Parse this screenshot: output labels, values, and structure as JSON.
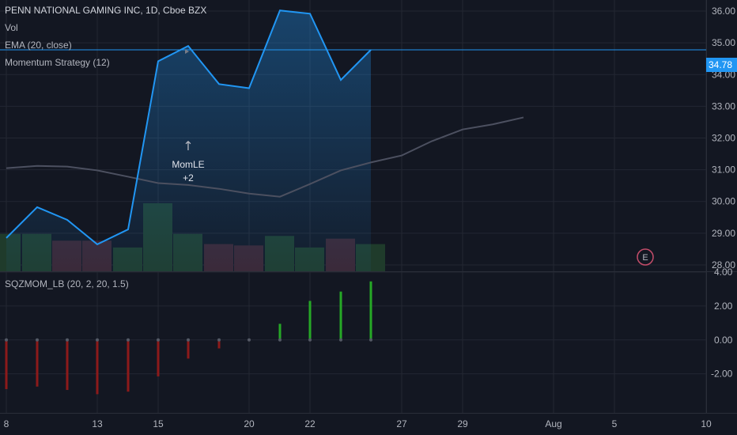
{
  "header": {
    "symbol_title": "PENN NATIONAL GAMING INC, 1D, Cboe BZX",
    "vol_label": "Vol",
    "ema_label": "EMA (20, close)",
    "strategy_label": "Momentum Strategy (12)",
    "indicator_label": "SQZMOM_LB (20, 2, 20, 1.5)"
  },
  "price_badge": "34.78",
  "signal": {
    "name": "MomLE",
    "qty": "+2",
    "arrow": "↑"
  },
  "earnings_marker": "E",
  "colors": {
    "background": "#131722",
    "price_line": "#2196f3",
    "ema_line": "#4c5060",
    "grid": "#232732",
    "pos_momentum": "#26a826",
    "neg_momentum": "#8c1a1a",
    "vol_up": "#1f3b2b",
    "vol_down": "#3b2430",
    "earnings": "#c44d6a"
  },
  "chart_data": [
    {
      "type": "area",
      "name": "price",
      "x": [
        "Jul 8",
        "Jul 9",
        "Jul 10",
        "Jul 11",
        "Jul 12",
        "Jul 15",
        "Jul 16",
        "Jul 17",
        "Jul 18",
        "Jul 19",
        "Jul 22",
        "Jul 23",
        "Jul 24"
      ],
      "close": [
        28.85,
        29.82,
        29.42,
        28.65,
        29.12,
        34.42,
        34.9,
        33.7,
        33.57,
        36.02,
        35.92,
        33.83,
        34.78
      ],
      "ema_x": [
        "Jul 8",
        "Jul 9",
        "Jul 10",
        "Jul 11",
        "Jul 12",
        "Jul 15",
        "Jul 16",
        "Jul 17",
        "Jul 18",
        "Jul 19",
        "Jul 22",
        "Jul 23",
        "Jul 24",
        "Jul 25",
        "Jul 26",
        "Jul 29",
        "Jul 30",
        "Jul 31"
      ],
      "ema": [
        31.05,
        31.12,
        31.1,
        30.98,
        30.78,
        30.58,
        30.52,
        30.4,
        30.25,
        30.15,
        30.55,
        30.98,
        31.23,
        31.45,
        31.9,
        32.27,
        32.43,
        32.65
      ],
      "volume_up": [
        true,
        true,
        false,
        false,
        true,
        true,
        true,
        false,
        false,
        true,
        true,
        false,
        true
      ],
      "volume_rel": [
        0.55,
        0.55,
        0.45,
        0.45,
        0.35,
        1.0,
        0.55,
        0.4,
        0.38,
        0.52,
        0.35,
        0.48,
        0.4
      ],
      "y_ticks": [
        "36.00",
        "35.00",
        "34.00",
        "33.00",
        "32.00",
        "31.00",
        "30.00",
        "29.00",
        "28.00"
      ],
      "ylim": [
        27.8,
        36.35
      ],
      "current": 34.78
    },
    {
      "type": "bar",
      "name": "squeeze momentum",
      "x": [
        "Jul 8",
        "Jul 9",
        "Jul 10",
        "Jul 11",
        "Jul 12",
        "Jul 15",
        "Jul 16",
        "Jul 17",
        "Jul 18",
        "Jul 19",
        "Jul 22",
        "Jul 23",
        "Jul 24"
      ],
      "values": [
        -2.9,
        -2.75,
        -2.95,
        -3.2,
        -3.05,
        -2.15,
        -1.1,
        -0.5,
        -0.05,
        0.95,
        2.3,
        2.85,
        3.45
      ],
      "y_ticks": [
        "4.00",
        "2.00",
        "0.00",
        "-2.00"
      ],
      "ylim": [
        -4.3,
        4.0
      ]
    }
  ],
  "x_axis_ticks": [
    "8",
    "13",
    "15",
    "20",
    "22",
    "27",
    "29",
    "Aug",
    "5",
    "10"
  ]
}
